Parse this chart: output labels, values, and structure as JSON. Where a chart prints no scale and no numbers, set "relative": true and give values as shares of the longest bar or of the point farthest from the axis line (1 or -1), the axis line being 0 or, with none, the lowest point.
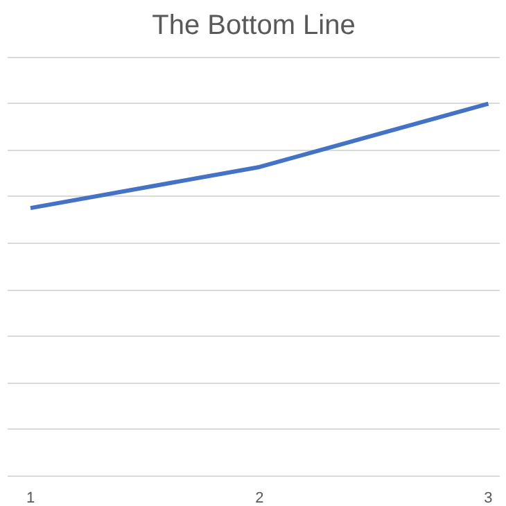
{
  "chart_data": {
    "type": "line",
    "title": "The Bottom Line",
    "categories": [
      "1",
      "2",
      "3"
    ],
    "relative": true,
    "series": [
      {
        "color": "#4472c4",
        "values": [
          0.72,
          0.83,
          1
        ]
      }
    ],
    "grid": "y",
    "marker": "none",
    "line_style": "solid"
  }
}
